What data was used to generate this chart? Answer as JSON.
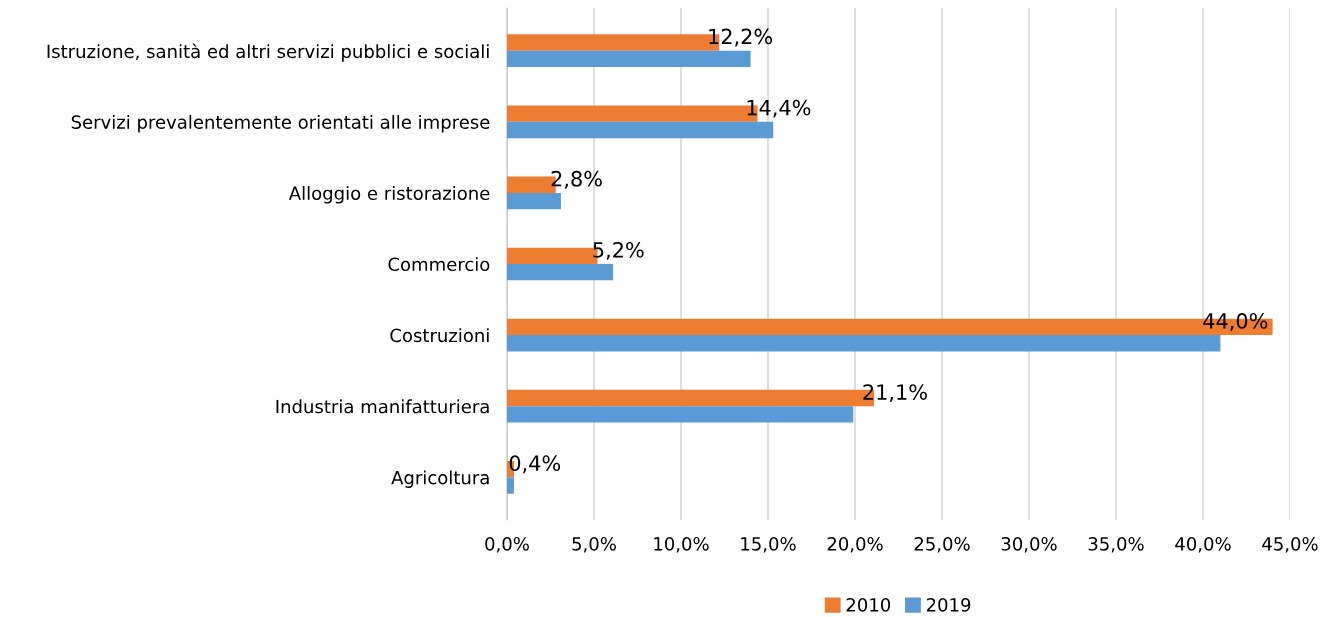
{
  "chart_data": {
    "type": "bar",
    "orientation": "horizontal",
    "categories": [
      "Istruzione, sanità ed altri servizi pubblici e sociali",
      "Servizi prevalentemente orientati alle imprese",
      "Alloggio e ristorazione",
      "Commercio",
      "Costruzioni",
      "Industria manifatturiera",
      "Agricoltura"
    ],
    "series": [
      {
        "name": "2010",
        "color": "#ed7d31",
        "values": [
          12.2,
          14.4,
          2.8,
          5.2,
          44.0,
          21.1,
          0.4
        ],
        "value_labels": [
          "12,2%",
          "14,4%",
          "2,8%",
          "5,2%",
          "44,0%",
          "21,1%",
          "0,4%"
        ]
      },
      {
        "name": "2019",
        "color": "#5b9bd5",
        "values": [
          14.0,
          15.3,
          3.1,
          6.1,
          41.0,
          19.9,
          0.4
        ]
      }
    ],
    "xlim": [
      0,
      45
    ],
    "xticks": [
      {
        "value": 0,
        "label": "0,0%"
      },
      {
        "value": 5,
        "label": "5,0%"
      },
      {
        "value": 10,
        "label": "10,0%"
      },
      {
        "value": 15,
        "label": "15,0%"
      },
      {
        "value": 20,
        "label": "20,0%"
      },
      {
        "value": 25,
        "label": "25,0%"
      },
      {
        "value": 30,
        "label": "30,0%"
      },
      {
        "value": 35,
        "label": "35,0%"
      },
      {
        "value": 40,
        "label": "40,0%"
      },
      {
        "value": 45,
        "label": "45,0%"
      }
    ],
    "grid": "x",
    "legend": "bottom"
  }
}
